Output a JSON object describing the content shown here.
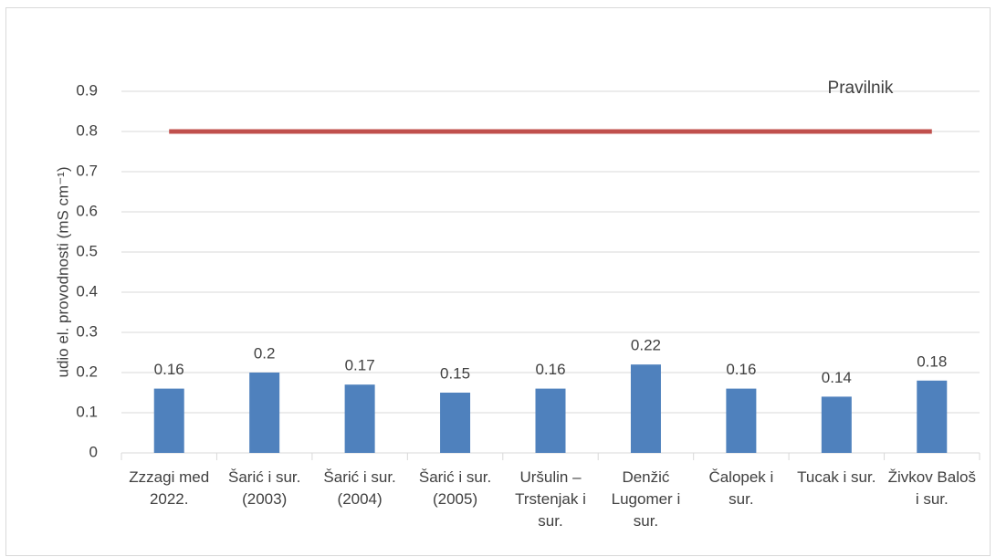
{
  "chart_data": {
    "type": "bar",
    "y_label": "udio el. provodnosti (mS cm⁻¹)",
    "categories": [
      "Zzzagi med 2022.",
      "Šarić i sur. (2003)",
      "Šarić i sur. (2004)",
      "Šarić i sur. (2005)",
      "Uršulin – Trstenjak i sur.",
      "Denžić Lugomer i sur.",
      "Čalopek i sur.",
      "Tucak i sur.",
      "Živkov Baloš i sur."
    ],
    "values": [
      0.16,
      0.2,
      0.17,
      0.15,
      0.16,
      0.22,
      0.16,
      0.14,
      0.18
    ],
    "color": "#4f81bd",
    "reference_line": {
      "label": "Pravilnik",
      "value": 0.8,
      "color": "#c0504d"
    },
    "ylim": [
      0,
      0.9
    ],
    "yticks": [
      0,
      0.1,
      0.2,
      0.3,
      0.4,
      0.5,
      0.6,
      0.7,
      0.8,
      0.9
    ],
    "grid": true
  }
}
